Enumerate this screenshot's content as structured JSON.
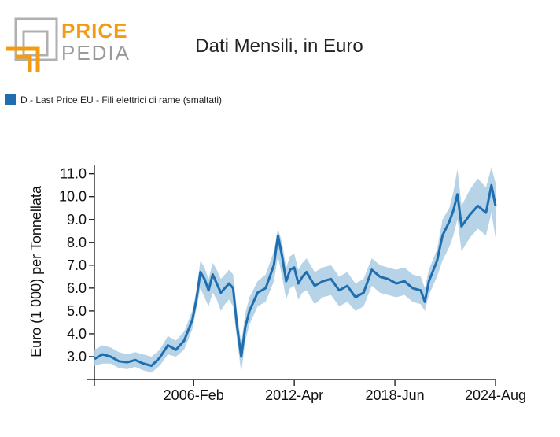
{
  "logo": {
    "line1": "PRICE",
    "line2": "PEDIA",
    "accent": "#f39c12",
    "gray": "#9a9a9a"
  },
  "chart_data": {
    "type": "line",
    "title": "Dati Mensili, in Euro",
    "ylabel": "Euro (1 000) per Tonnellata",
    "xlabel": "",
    "x_ticks": [
      "2006-Feb",
      "2012-Apr",
      "2018-Jun",
      "2024-Aug"
    ],
    "y_ticks": [
      "3.0",
      "4.0",
      "5.0",
      "6.0",
      "7.0",
      "8.0",
      "9.0",
      "10.0",
      "11.0"
    ],
    "ylim": [
      2.0,
      11.3
    ],
    "xlim": [
      "2000-Jan",
      "2024-Aug"
    ],
    "grid": false,
    "legend": "top-left",
    "series": [
      {
        "name": "D - Last Price EU - Fili elettrici di rame (smaltati)",
        "color": "#1f6fb0",
        "band_color": "#a9cbe3",
        "x": [
          "2000-01",
          "2000-07",
          "2001-01",
          "2001-07",
          "2002-01",
          "2002-07",
          "2003-01",
          "2003-07",
          "2004-01",
          "2004-07",
          "2005-01",
          "2005-07",
          "2006-01",
          "2006-04",
          "2006-07",
          "2006-10",
          "2007-01",
          "2007-04",
          "2007-07",
          "2007-10",
          "2008-01",
          "2008-04",
          "2008-07",
          "2008-10",
          "2009-01",
          "2009-04",
          "2009-07",
          "2010-01",
          "2010-07",
          "2011-01",
          "2011-04",
          "2011-07",
          "2011-10",
          "2012-01",
          "2012-04",
          "2012-07",
          "2012-10",
          "2013-01",
          "2013-07",
          "2014-01",
          "2014-07",
          "2015-01",
          "2015-07",
          "2016-01",
          "2016-07",
          "2017-01",
          "2017-07",
          "2018-01",
          "2018-07",
          "2019-01",
          "2019-07",
          "2020-01",
          "2020-04",
          "2020-07",
          "2021-01",
          "2021-05",
          "2021-10",
          "2022-01",
          "2022-04",
          "2022-07",
          "2023-01",
          "2023-07",
          "2024-01",
          "2024-05",
          "2024-08"
        ],
        "values": [
          2.9,
          3.1,
          3.0,
          2.8,
          2.75,
          2.85,
          2.7,
          2.6,
          2.95,
          3.5,
          3.3,
          3.7,
          4.6,
          5.5,
          6.7,
          6.4,
          5.9,
          6.6,
          6.2,
          5.8,
          6.0,
          6.2,
          6.0,
          4.3,
          3.0,
          4.3,
          5.0,
          5.8,
          6.0,
          7.0,
          8.3,
          7.4,
          6.3,
          6.8,
          6.9,
          6.2,
          6.5,
          6.7,
          6.1,
          6.3,
          6.4,
          5.9,
          6.1,
          5.6,
          5.8,
          6.8,
          6.5,
          6.4,
          6.2,
          6.3,
          6.0,
          5.9,
          5.4,
          6.3,
          7.2,
          8.3,
          8.9,
          9.4,
          10.1,
          8.7,
          9.2,
          9.6,
          9.3,
          10.5,
          9.6
        ],
        "band_low": [
          2.6,
          2.7,
          2.7,
          2.5,
          2.45,
          2.55,
          2.4,
          2.3,
          2.6,
          3.1,
          3.0,
          3.3,
          4.2,
          5.1,
          6.0,
          5.6,
          5.2,
          5.8,
          5.5,
          5.0,
          5.3,
          5.5,
          5.2,
          3.7,
          2.3,
          3.7,
          4.4,
          5.2,
          5.4,
          6.3,
          7.4,
          6.5,
          5.5,
          6.0,
          6.1,
          5.5,
          5.8,
          5.9,
          5.3,
          5.6,
          5.7,
          5.2,
          5.4,
          5.0,
          5.2,
          6.1,
          5.8,
          5.7,
          5.6,
          5.7,
          5.4,
          5.3,
          5.0,
          5.7,
          6.5,
          7.2,
          7.8,
          8.3,
          9.0,
          7.6,
          8.2,
          8.6,
          8.3,
          9.3,
          8.2
        ],
        "band_high": [
          3.3,
          3.5,
          3.4,
          3.2,
          3.1,
          3.2,
          3.1,
          3.0,
          3.3,
          3.9,
          3.7,
          4.1,
          5.0,
          5.9,
          7.2,
          6.9,
          6.4,
          7.1,
          6.8,
          6.4,
          6.6,
          6.8,
          6.6,
          4.9,
          3.6,
          4.9,
          5.6,
          6.3,
          6.6,
          7.6,
          8.6,
          8.0,
          6.9,
          7.4,
          7.5,
          6.8,
          7.1,
          7.3,
          6.7,
          6.9,
          7.0,
          6.5,
          6.7,
          6.2,
          6.4,
          7.3,
          7.0,
          6.9,
          6.8,
          6.9,
          6.6,
          6.5,
          6.0,
          6.8,
          7.7,
          9.0,
          9.5,
          10.2,
          11.2,
          9.6,
          10.3,
          10.8,
          10.4,
          11.3,
          10.6
        ]
      }
    ]
  }
}
